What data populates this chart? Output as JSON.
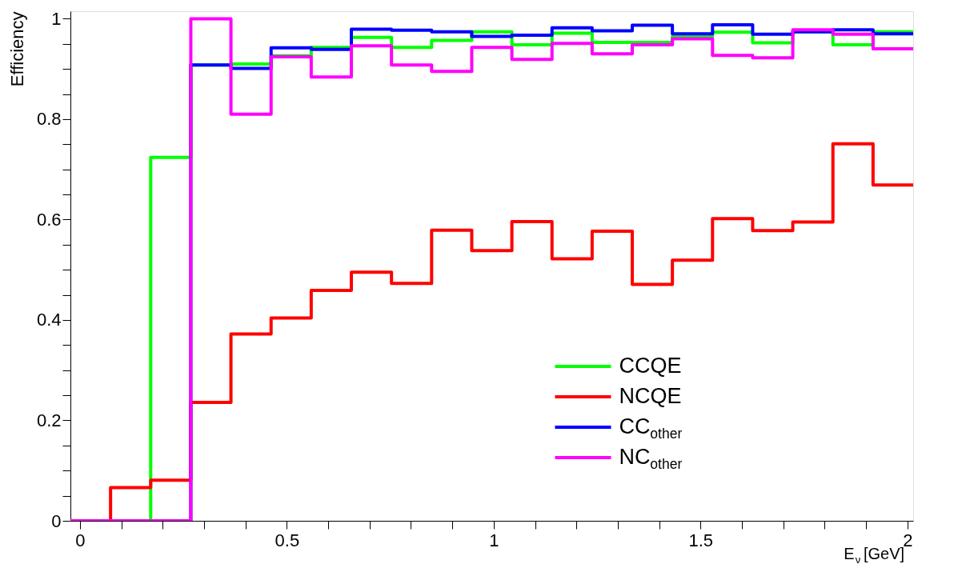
{
  "chart_data": {
    "type": "histogram",
    "xlabel": "E$_{ν}$ [GeV]",
    "ylabel": "Efficiency",
    "bins": [
      -0.023,
      0.074,
      0.171,
      0.268,
      0.365,
      0.462,
      0.559,
      0.656,
      0.753,
      0.85,
      0.947,
      1.044,
      1.141,
      1.238,
      1.335,
      1.432,
      1.529,
      1.626,
      1.723,
      1.82,
      1.917,
      2.014
    ],
    "series": [
      {
        "name": "CCQE",
        "color": "#00ff00",
        "values": [
          0,
          0,
          0.724,
          0.908,
          0.91,
          0.926,
          0.943,
          0.963,
          0.943,
          0.957,
          0.974,
          0.948,
          0.971,
          0.953,
          0.953,
          0.965,
          0.973,
          0.952,
          0.974,
          0.948,
          0.974
        ]
      },
      {
        "name": "NCQE",
        "color": "#ff0000",
        "values": [
          0,
          0.066,
          0.081,
          0.236,
          0.372,
          0.404,
          0.459,
          0.495,
          0.473,
          0.579,
          0.538,
          0.596,
          0.522,
          0.577,
          0.471,
          0.519,
          0.602,
          0.578,
          0.595,
          0.751,
          0.669
        ]
      },
      {
        "name": "CC$_{other}$",
        "color": "#0000ff",
        "values": [
          0,
          0,
          0,
          0.908,
          0.901,
          0.942,
          0.939,
          0.979,
          0.977,
          0.974,
          0.965,
          0.967,
          0.982,
          0.976,
          0.987,
          0.97,
          0.988,
          0.969,
          0.974,
          0.978,
          0.97
        ]
      },
      {
        "name": "NC$_{other}$",
        "color": "#ff00ff",
        "values": [
          0,
          0,
          0,
          1.0,
          0.81,
          0.924,
          0.884,
          0.946,
          0.908,
          0.895,
          0.943,
          0.919,
          0.951,
          0.93,
          0.948,
          0.96,
          0.927,
          0.922,
          0.978,
          0.969,
          0.94
        ]
      }
    ],
    "xlim": [
      -0.023,
      2.014
    ],
    "ylim": [
      0,
      1.015
    ],
    "xticks": [
      0,
      {
        "value": 0.1,
        "label": null
      },
      {
        "value": 0.2,
        "label": null
      },
      {
        "value": 0.3,
        "label": null
      },
      {
        "value": 0.4,
        "label": null
      },
      0.5,
      {
        "value": 0.6,
        "label": null
      },
      {
        "value": 0.7,
        "label": null
      },
      {
        "value": 0.8,
        "label": null
      },
      {
        "value": 0.9,
        "label": null
      },
      1,
      {
        "value": 1.1,
        "label": null
      },
      {
        "value": 1.2,
        "label": null
      },
      {
        "value": 1.3,
        "label": null
      },
      {
        "value": 1.4,
        "label": null
      },
      1.5,
      {
        "value": 1.6,
        "label": null
      },
      {
        "value": 1.7,
        "label": null
      },
      {
        "value": 1.8,
        "label": null
      },
      {
        "value": 1.9,
        "label": null
      },
      2
    ],
    "yticks": [
      0,
      {
        "value": 0.05,
        "label": null
      },
      {
        "value": 0.1,
        "label": null
      },
      {
        "value": 0.15,
        "label": null
      },
      0.2,
      {
        "value": 0.25,
        "label": null
      },
      {
        "value": 0.3,
        "label": null
      },
      {
        "value": 0.35,
        "label": null
      },
      0.4,
      {
        "value": 0.45,
        "label": null
      },
      {
        "value": 0.5,
        "label": null
      },
      {
        "value": 0.55,
        "label": null
      },
      0.6,
      {
        "value": 0.65,
        "label": null
      },
      {
        "value": 0.7,
        "label": null
      },
      {
        "value": 0.75,
        "label": null
      },
      0.8,
      {
        "value": 0.85,
        "label": null
      },
      {
        "value": 0.9,
        "label": null
      },
      {
        "value": 0.95,
        "label": null
      },
      1
    ],
    "grid": false,
    "legend": "bottom right",
    "line_style": "solid",
    "marker": "none"
  }
}
